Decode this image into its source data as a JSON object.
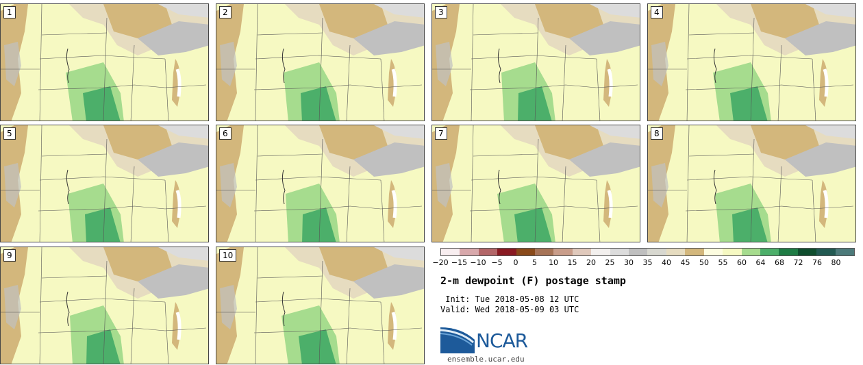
{
  "panels": [
    "1",
    "2",
    "3",
    "4",
    "5",
    "6",
    "7",
    "8",
    "9",
    "10"
  ],
  "colorbar": {
    "colors": [
      "#f8eef0",
      "#d8a8ab",
      "#b36668",
      "#8a1a22",
      "#8a4a1a",
      "#a77457",
      "#c99d8a",
      "#e0c9bc",
      "#f3f0ee",
      "#dcdcdc",
      "#bfbfbf",
      "#d8d8d0",
      "#e6dcc0",
      "#d3b77c",
      "#fdfde0",
      "#f6f9c2",
      "#a6dc8e",
      "#4caf6a",
      "#1e7c44",
      "#0f4e2e",
      "#225a52",
      "#4c7a7a"
    ],
    "tick_labels": [
      "−20",
      "−15",
      "−10",
      "−5",
      "0",
      "5",
      "10",
      "15",
      "20",
      "25",
      "30",
      "35",
      "40",
      "45",
      "50",
      "55",
      "60",
      "64",
      "68",
      "72",
      "76",
      "80"
    ]
  },
  "title": "2-m dewpoint (F) postage stamp",
  "init": " Init: Tue 2018-05-08 12 UTC",
  "valid": "Valid: Wed 2018-05-09 03 UTC",
  "logo_text": "NCAR",
  "website": "ensemble.ucar.edu"
}
